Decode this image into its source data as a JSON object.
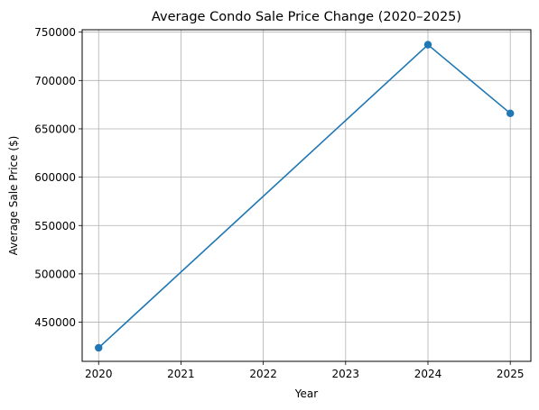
{
  "chart_data": {
    "type": "line",
    "title": "Average Condo Sale Price Change (2020–2025)",
    "xlabel": "Year",
    "ylabel": "Average Sale Price ($)",
    "x": [
      2020,
      2024,
      2025
    ],
    "xticks": [
      "2020",
      "2021",
      "2022",
      "2023",
      "2024",
      "2025"
    ],
    "yticks": [
      "450000",
      "500000",
      "550000",
      "600000",
      "650000",
      "700000",
      "750000"
    ],
    "xlim": [
      2019.8,
      2025.25
    ],
    "ylim": [
      409500,
      752500
    ],
    "grid": true,
    "series": [
      {
        "values": [
          423500,
          737000,
          666000
        ],
        "color": "#1f77b4",
        "marker": "circle"
      }
    ]
  }
}
